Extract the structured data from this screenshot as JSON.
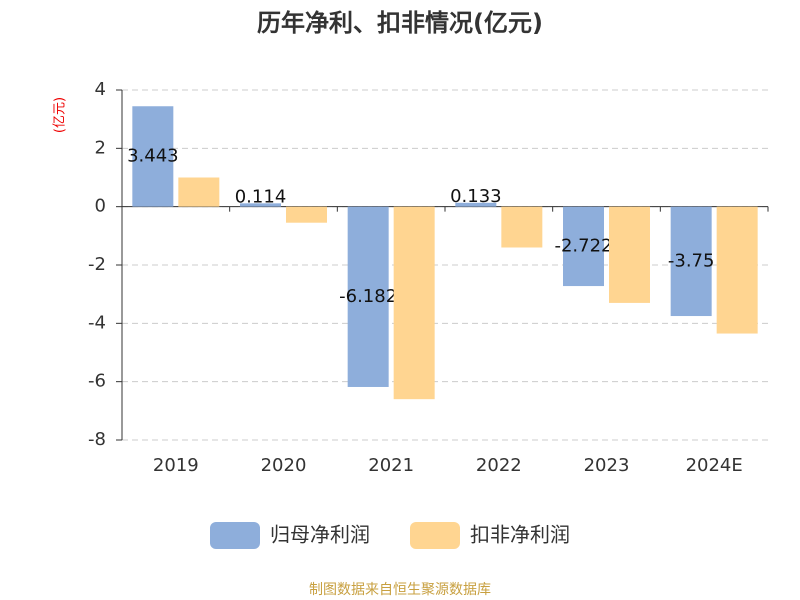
{
  "chart_data": {
    "type": "bar",
    "title": "历年净利、扣非情况(亿元)",
    "y_label": "(亿元)",
    "categories": [
      "2019",
      "2020",
      "2021",
      "2022",
      "2023",
      "2024E"
    ],
    "series": [
      {
        "name": "归母净利润",
        "color": "#8eaedb",
        "values": [
          3.443,
          0.114,
          -6.182,
          0.133,
          -2.722,
          -3.75
        ],
        "show_labels": true
      },
      {
        "name": "扣非净利润",
        "color": "#ffd591",
        "values": [
          1.0,
          -0.55,
          -6.6,
          -1.4,
          -3.3,
          -4.35
        ]
      }
    ],
    "ylim": [
      -8,
      4
    ],
    "yticks": [
      -8,
      -6,
      -4,
      -2,
      0,
      2,
      4
    ],
    "grid": true,
    "legend": "bottom",
    "source": "制图数据来自恒生聚源数据库"
  }
}
